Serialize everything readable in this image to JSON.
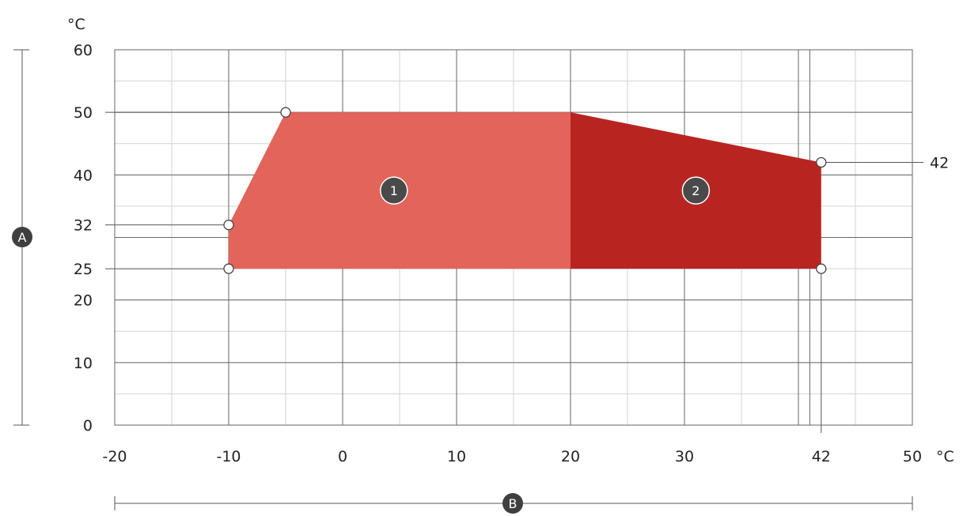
{
  "chart_data": {
    "type": "area",
    "x_unit": "°C",
    "y_unit": "°C",
    "xlim": [
      -20,
      50
    ],
    "ylim": [
      0,
      60
    ],
    "x_ticks": [
      "-20",
      "-10",
      "0",
      "10",
      "20",
      "30",
      "42",
      "50"
    ],
    "x_tick_values": [
      -20,
      -10,
      0,
      10,
      20,
      30,
      42,
      50
    ],
    "y_ticks": [
      "0",
      "10",
      "20",
      "25",
      "32",
      "40",
      "50",
      "60"
    ],
    "y_tick_values": [
      0,
      10,
      20,
      25,
      32,
      40,
      50,
      60
    ],
    "right_labels": [
      {
        "text": "42",
        "y": 42
      }
    ],
    "grid": true,
    "regions": [
      {
        "label": "1",
        "color": "#e2645a",
        "points": [
          [
            -10,
            25
          ],
          [
            -10,
            32
          ],
          [
            -5,
            50
          ],
          [
            20,
            50
          ],
          [
            20,
            25
          ]
        ]
      },
      {
        "label": "2",
        "color": "#b82520",
        "points": [
          [
            20,
            25
          ],
          [
            20,
            50
          ],
          [
            42,
            42
          ],
          [
            42,
            25
          ]
        ]
      }
    ],
    "markers": [
      [
        -5,
        50
      ],
      [
        -10,
        32
      ],
      [
        -10,
        25
      ],
      [
        42,
        42
      ],
      [
        42,
        25
      ]
    ],
    "axis_markers": {
      "y": "A",
      "x": "B"
    }
  }
}
